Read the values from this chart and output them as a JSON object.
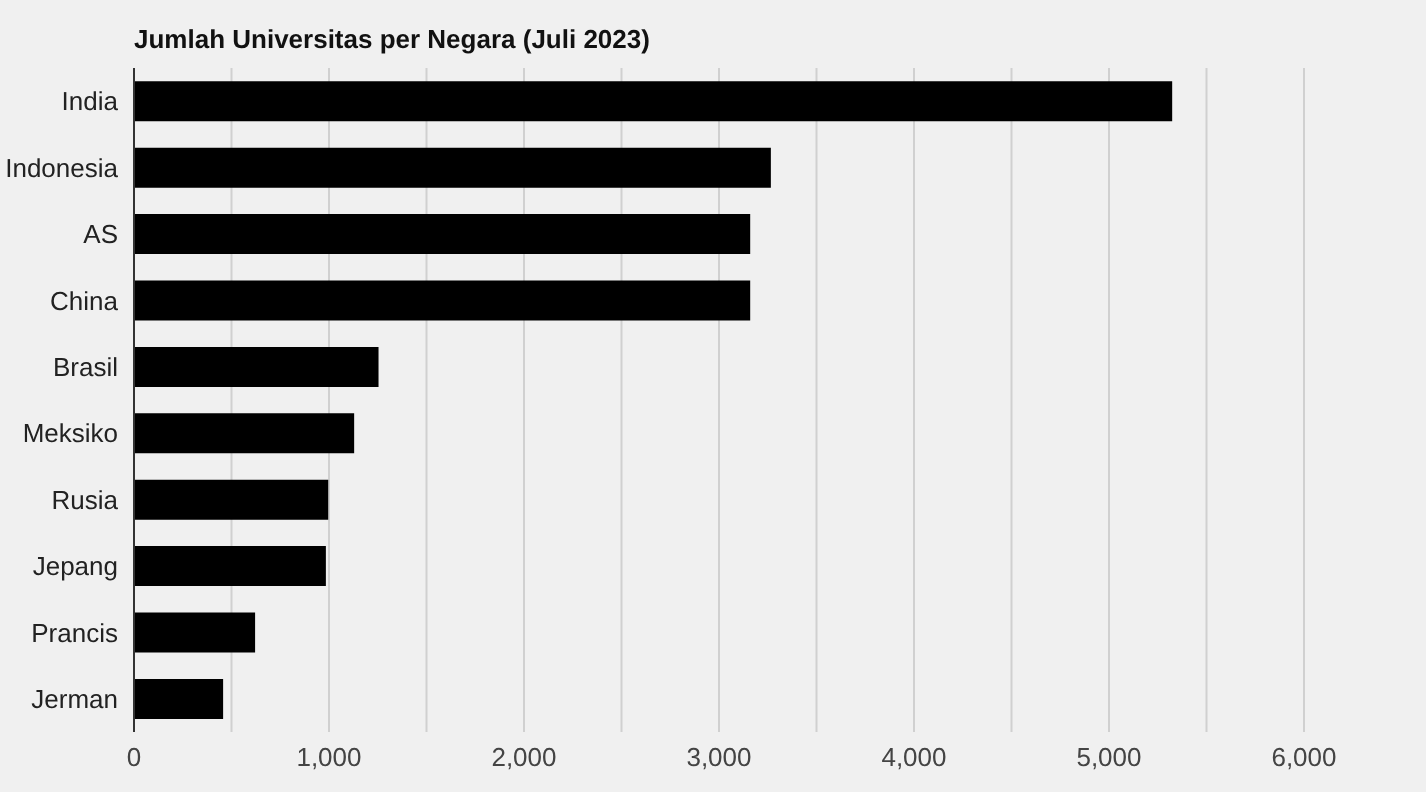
{
  "chart_data": {
    "type": "bar",
    "orientation": "horizontal",
    "title": "Jumlah Universitas per Negara (Juli 2023)",
    "categories": [
      "India",
      "Indonesia",
      "AS",
      "China",
      "Brasil",
      "Meksiko",
      "Rusia",
      "Jepang",
      "Prancis",
      "Jerman"
    ],
    "values": [
      5324,
      3266,
      3160,
      3160,
      1254,
      1129,
      996,
      984,
      621,
      457
    ],
    "color": "#000000",
    "xlim": [
      0,
      6000
    ],
    "xticks": [
      0,
      {
        "value": 500,
        "label": null
      },
      {
        "value": 1000,
        "label": "1,000"
      },
      {
        "value": 1500,
        "label": null
      },
      {
        "value": 2000,
        "label": "2,000"
      },
      {
        "value": 2500,
        "label": null
      },
      {
        "value": 3000,
        "label": "3,000"
      },
      {
        "value": 3500,
        "label": null
      },
      {
        "value": 4000,
        "label": "4,000"
      },
      {
        "value": 4500,
        "label": null
      },
      {
        "value": 5000,
        "label": "5,000"
      },
      {
        "value": 5500,
        "label": null
      },
      {
        "value": 6000,
        "label": "6,000"
      }
    ],
    "grid": "x"
  }
}
